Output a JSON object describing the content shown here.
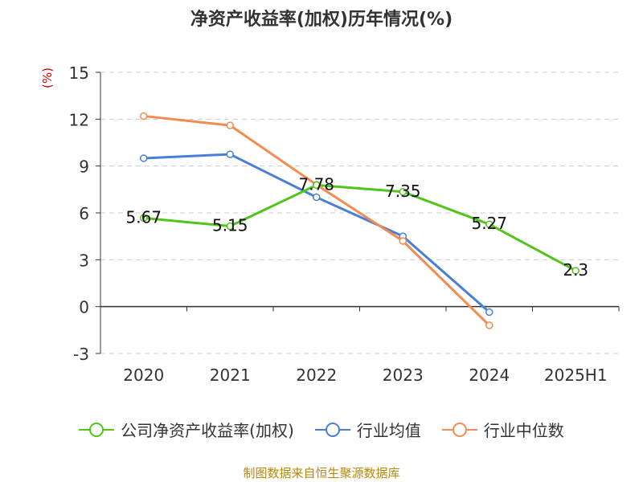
{
  "chart_data": {
    "type": "line",
    "title": "净资产收益率(加权)历年情况(%)",
    "ylabel": "(%)",
    "categories": [
      "2020",
      "2021",
      "2022",
      "2023",
      "2024",
      "2025H1"
    ],
    "ylim": [
      -3,
      15
    ],
    "yticks": [
      15,
      12,
      9,
      6,
      3,
      0,
      -3
    ],
    "grid": true,
    "legend_position": "bottom",
    "series": [
      {
        "name": "公司净资产收益率(加权)",
        "color": "#52c41a",
        "values": [
          5.67,
          5.15,
          7.78,
          7.35,
          5.27,
          2.3
        ],
        "labels": [
          "5.67",
          "5.15",
          "7.78",
          "7.35",
          "5.27",
          "2.3"
        ]
      },
      {
        "name": "行业均值",
        "color": "#4a7fd6",
        "values": [
          9.5,
          9.75,
          7.0,
          4.5,
          -0.35,
          null
        ]
      },
      {
        "name": "行业中位数",
        "color": "#f28c50",
        "values": [
          12.2,
          11.6,
          7.8,
          4.2,
          -1.2,
          null
        ]
      }
    ]
  },
  "footer": {
    "source": "制图数据来自恒生聚源数据库"
  }
}
